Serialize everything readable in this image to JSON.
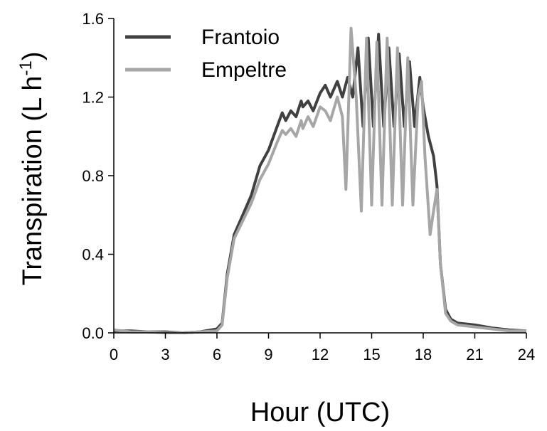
{
  "chart_data": {
    "type": "line",
    "xlabel": "Hour (UTC)",
    "ylabel_main": "Transpiration (L h",
    "ylabel_sup": "-1",
    "ylabel_close": ")",
    "xlim": [
      0,
      24
    ],
    "ylim": [
      0,
      1.6
    ],
    "x_ticks": [
      "0",
      "3",
      "6",
      "9",
      "12",
      "15",
      "18",
      "21",
      "24"
    ],
    "y_ticks": [
      "0.0",
      "0.4",
      "0.8",
      "1.2",
      "1.6"
    ],
    "grid": false,
    "legend_position": "top-left",
    "series": [
      {
        "name": "Frantoio",
        "color": "#404040",
        "points": [
          [
            0,
            0.01
          ],
          [
            1,
            0.01
          ],
          [
            2,
            0.005
          ],
          [
            3,
            0.005
          ],
          [
            4,
            0.0
          ],
          [
            5,
            0.005
          ],
          [
            6,
            0.02
          ],
          [
            6.3,
            0.05
          ],
          [
            6.6,
            0.3
          ],
          [
            7,
            0.5
          ],
          [
            7.5,
            0.6
          ],
          [
            8,
            0.7
          ],
          [
            8.5,
            0.85
          ],
          [
            9,
            0.93
          ],
          [
            9.5,
            1.05
          ],
          [
            9.8,
            1.12
          ],
          [
            10,
            1.08
          ],
          [
            10.3,
            1.13
          ],
          [
            10.6,
            1.1
          ],
          [
            10.9,
            1.18
          ],
          [
            11,
            1.15
          ],
          [
            11.3,
            1.18
          ],
          [
            11.6,
            1.13
          ],
          [
            12,
            1.22
          ],
          [
            12.3,
            1.26
          ],
          [
            12.6,
            1.2
          ],
          [
            13,
            1.28
          ],
          [
            13.3,
            1.2
          ],
          [
            13.6,
            1.3
          ],
          [
            13.9,
            1.2
          ],
          [
            14.2,
            1.45
          ],
          [
            14.5,
            1.05
          ],
          [
            14.8,
            1.5
          ],
          [
            15.1,
            1.05
          ],
          [
            15.4,
            1.52
          ],
          [
            15.7,
            1.05
          ],
          [
            16.0,
            1.45
          ],
          [
            16.3,
            1.05
          ],
          [
            16.6,
            1.42
          ],
          [
            16.9,
            1.05
          ],
          [
            17.2,
            1.38
          ],
          [
            17.5,
            1.05
          ],
          [
            17.8,
            1.3
          ],
          [
            18,
            1.15
          ],
          [
            18.3,
            1.0
          ],
          [
            18.6,
            0.9
          ],
          [
            18.8,
            0.75
          ],
          [
            19,
            0.35
          ],
          [
            19.3,
            0.12
          ],
          [
            19.6,
            0.07
          ],
          [
            20,
            0.05
          ],
          [
            21,
            0.04
          ],
          [
            22,
            0.025
          ],
          [
            23,
            0.015
          ],
          [
            24,
            0.01
          ]
        ]
      },
      {
        "name": "Empeltre",
        "color": "#a6a6a6",
        "points": [
          [
            0,
            0.015
          ],
          [
            1,
            0.005
          ],
          [
            2,
            0.005
          ],
          [
            3,
            0.0
          ],
          [
            4,
            0.0
          ],
          [
            5,
            0.005
          ],
          [
            6,
            0.01
          ],
          [
            6.3,
            0.04
          ],
          [
            6.6,
            0.28
          ],
          [
            7,
            0.48
          ],
          [
            7.5,
            0.57
          ],
          [
            8,
            0.66
          ],
          [
            8.5,
            0.78
          ],
          [
            9,
            0.86
          ],
          [
            9.5,
            0.97
          ],
          [
            9.8,
            1.03
          ],
          [
            10,
            1.01
          ],
          [
            10.3,
            1.04
          ],
          [
            10.6,
            1.0
          ],
          [
            10.9,
            1.08
          ],
          [
            11,
            1.04
          ],
          [
            11.3,
            1.1
          ],
          [
            11.6,
            1.05
          ],
          [
            12,
            1.15
          ],
          [
            12.3,
            1.13
          ],
          [
            12.6,
            1.08
          ],
          [
            13,
            1.2
          ],
          [
            13.3,
            1.1
          ],
          [
            13.5,
            0.73
          ],
          [
            13.8,
            1.55
          ],
          [
            14.1,
            1.2
          ],
          [
            14.4,
            0.62
          ],
          [
            14.7,
            1.5
          ],
          [
            15.0,
            0.65
          ],
          [
            15.3,
            1.48
          ],
          [
            15.6,
            0.65
          ],
          [
            15.9,
            1.5
          ],
          [
            16.2,
            0.65
          ],
          [
            16.5,
            1.45
          ],
          [
            16.8,
            0.65
          ],
          [
            17.1,
            1.4
          ],
          [
            17.4,
            0.65
          ],
          [
            17.7,
            1.2
          ],
          [
            17.9,
            1.28
          ],
          [
            18.1,
            0.9
          ],
          [
            18.4,
            0.5
          ],
          [
            18.6,
            0.62
          ],
          [
            18.8,
            0.73
          ],
          [
            19,
            0.35
          ],
          [
            19.3,
            0.1
          ],
          [
            19.6,
            0.06
          ],
          [
            20,
            0.04
          ],
          [
            21,
            0.03
          ],
          [
            22,
            0.02
          ],
          [
            23,
            0.01
          ],
          [
            24,
            0.01
          ]
        ]
      }
    ]
  }
}
